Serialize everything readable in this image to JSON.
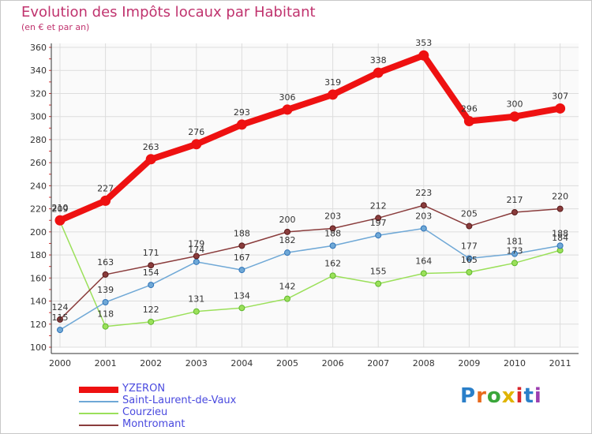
{
  "header": {
    "title": "Evolution des Impôts locaux par Habitant",
    "subtitle": "(en € et par an)"
  },
  "logo": {
    "text": "Proxiti",
    "letter_colors": [
      "#2a7fc9",
      "#e86a1c",
      "#3aa63a",
      "#e0b400",
      "#d9272d",
      "#2a7fc9",
      "#9c3fb0"
    ]
  },
  "chart_data": {
    "type": "line",
    "title": "Evolution des Impôts locaux par Habitant",
    "subtitle": "(en € et par an)",
    "x": [
      "2000",
      "2001",
      "2002",
      "2003",
      "2004",
      "2005",
      "2006",
      "2007",
      "2008",
      "2009",
      "2010",
      "2011"
    ],
    "ylim": [
      100,
      360
    ],
    "yticks": [
      100,
      120,
      140,
      160,
      180,
      200,
      220,
      240,
      260,
      280,
      300,
      320,
      340,
      360
    ],
    "grid": true,
    "legend_position": "bottom-left",
    "series": [
      {
        "name": "YZERON",
        "color": "#ee1111",
        "values": [
          210,
          227,
          263,
          276,
          293,
          306,
          319,
          338,
          353,
          296,
          300,
          307
        ]
      },
      {
        "name": "Saint-Laurent-de-Vaux",
        "color": "#6fa8d6",
        "values": [
          115,
          139,
          154,
          174,
          167,
          182,
          188,
          197,
          203,
          177,
          181,
          188
        ]
      },
      {
        "name": "Courzieu",
        "color": "#9be05a",
        "values": [
          209,
          118,
          122,
          131,
          134,
          142,
          162,
          155,
          164,
          165,
          173,
          184
        ]
      },
      {
        "name": "Montromant",
        "color": "#8a3c3c",
        "values": [
          124,
          163,
          171,
          179,
          188,
          200,
          203,
          212,
          223,
          205,
          217,
          220
        ]
      }
    ]
  }
}
